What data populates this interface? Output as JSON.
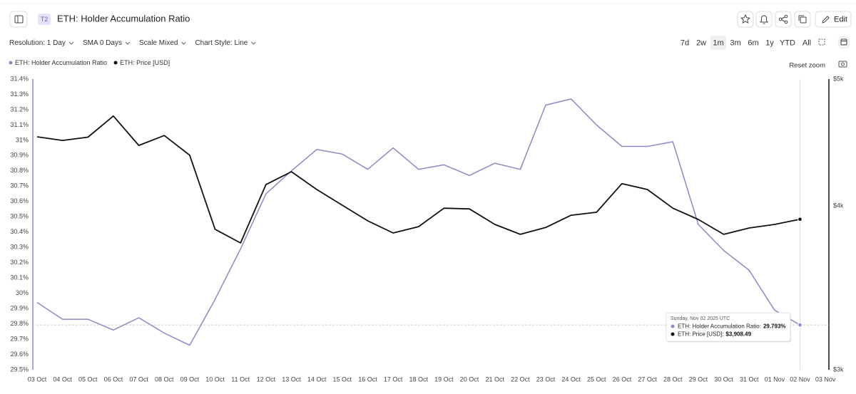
{
  "header": {
    "badge": "T2",
    "title": "ETH: Holder Accumulation Ratio",
    "edit": "Edit"
  },
  "toolbar": {
    "options": [
      "Resolution: 1 Day",
      "SMA 0 Days",
      "Scale Mixed",
      "Chart Style: Line"
    ],
    "ranges": [
      "7d",
      "2w",
      "1m",
      "3m",
      "6m",
      "1y",
      "YTD",
      "All"
    ],
    "active_range": 2
  },
  "chart_data": {
    "type": "line",
    "legend": "top-left",
    "reset_zoom": "Reset zoom",
    "categories": [
      "03 Oct",
      "04 Oct",
      "05 Oct",
      "06 Oct",
      "07 Oct",
      "08 Oct",
      "09 Oct",
      "10 Oct",
      "11 Oct",
      "12 Oct",
      "13 Oct",
      "14 Oct",
      "15 Oct",
      "16 Oct",
      "17 Oct",
      "18 Oct",
      "19 Oct",
      "20 Oct",
      "21 Oct",
      "22 Oct",
      "23 Oct",
      "24 Oct",
      "25 Oct",
      "26 Oct",
      "27 Oct",
      "28 Oct",
      "29 Oct",
      "30 Oct",
      "31 Oct",
      "01 Nov",
      "02 Nov",
      "03 Nov"
    ],
    "series": [
      {
        "name": "ETH: Holder Accumulation Ratio",
        "color": "#8b89c6",
        "axis": "y",
        "values": [
          29.94,
          29.83,
          29.83,
          29.76,
          29.84,
          29.74,
          29.66,
          29.96,
          30.29,
          30.65,
          30.8,
          30.94,
          30.91,
          30.81,
          30.95,
          30.81,
          30.84,
          30.77,
          30.85,
          30.81,
          31.23,
          31.27,
          31.1,
          30.96,
          30.96,
          30.99,
          30.45,
          30.28,
          30.15,
          29.89,
          29.793,
          null
        ]
      },
      {
        "name": "ETH: Price [USD]",
        "color": "#111111",
        "axis": "y2",
        "values": [
          4518,
          4489,
          4515,
          4686,
          4450,
          4528,
          4374,
          3840,
          3749,
          4154,
          4249,
          4118,
          4006,
          3898,
          3815,
          3858,
          3985,
          3980,
          3873,
          3806,
          3852,
          3936,
          3957,
          4161,
          4118,
          3985,
          3907,
          3806,
          3849,
          3873,
          3908.49,
          null
        ]
      }
    ],
    "ylim": [
      29.5,
      31.4
    ],
    "yticks": [
      {
        "value": 29.5,
        "label": "29.5%"
      },
      {
        "value": 29.6,
        "label": "29.6%"
      },
      {
        "value": 29.7,
        "label": "29.7%"
      },
      {
        "value": 29.8,
        "label": "29.8%"
      },
      {
        "value": 29.9,
        "label": "29.9%"
      },
      {
        "value": 30,
        "label": "30%"
      },
      {
        "value": 30.1,
        "label": "30.1%"
      },
      {
        "value": 30.2,
        "label": "30.2%"
      },
      {
        "value": 30.3,
        "label": "30.3%"
      },
      {
        "value": 30.4,
        "label": "30.4%"
      },
      {
        "value": 30.5,
        "label": "30.5%"
      },
      {
        "value": 30.6,
        "label": "30.6%"
      },
      {
        "value": 30.7,
        "label": "30.7%"
      },
      {
        "value": 30.8,
        "label": "30.8%"
      },
      {
        "value": 30.9,
        "label": "30.9%"
      },
      {
        "value": 31,
        "label": "31%"
      },
      {
        "value": 31.1,
        "label": "31.1%"
      },
      {
        "value": 31.2,
        "label": "31.2%"
      },
      {
        "value": 31.3,
        "label": "31.3%"
      },
      {
        "value": 31.4,
        "label": "31.4%"
      }
    ],
    "y2lim": [
      3000,
      5000
    ],
    "y2log": true,
    "y2ticks": [
      {
        "value": 3000,
        "label": "$3k"
      },
      {
        "value": 4000,
        "label": "$4k"
      },
      {
        "value": 5000,
        "label": "$5k"
      }
    ],
    "grid": false,
    "tooltip": {
      "index": 30,
      "title": "Sunday, Nov 02 2025 UTC",
      "items": [
        {
          "label": "ETH: Holder Accumulation Ratio:",
          "value": "29.793%"
        },
        {
          "label": "ETH: Price [USD]:",
          "value": "$3,908.49"
        }
      ]
    }
  }
}
